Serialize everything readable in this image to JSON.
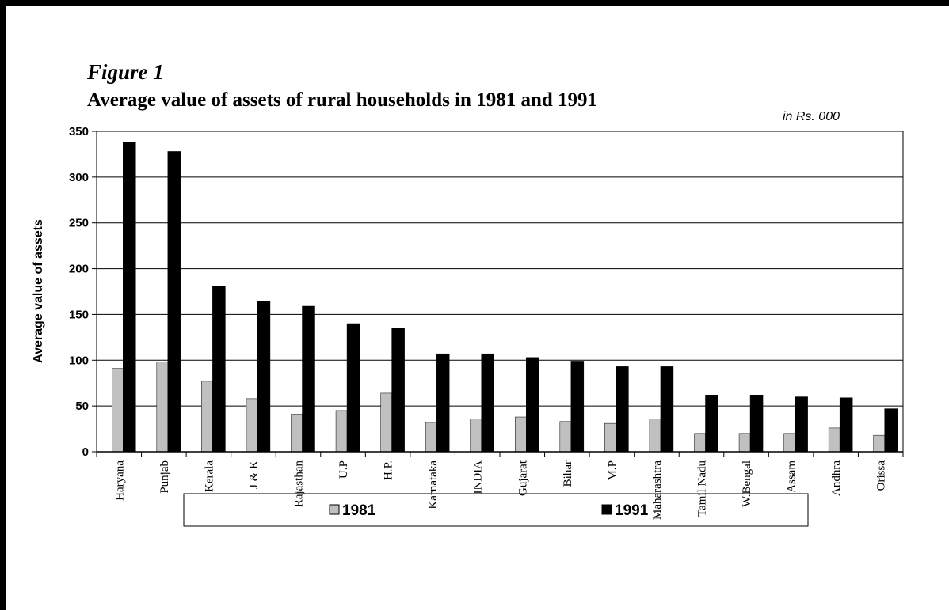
{
  "chart_data": {
    "type": "bar",
    "subtitle": "Figure 1",
    "title": "Average value of assets of rural households in 1981 and 1991",
    "unit_note": "in Rs. 000",
    "y_label": "Average value of assets",
    "categories": [
      "Haryana",
      "Punjab",
      "Kerala",
      "J & K",
      "Rajasthan",
      "U.P",
      "H.P.",
      "Karnataka",
      "INDIA",
      "Gujarat",
      "Bihar",
      "M.P",
      "Maharashtra",
      "Tamil Nadu",
      "W.Bengal",
      "Assam",
      "Andhra",
      "Orissa"
    ],
    "series": [
      {
        "name": "1981",
        "color": "#c0c0c0",
        "values": [
          91,
          98,
          77,
          58,
          41,
          45,
          64,
          32,
          36,
          38,
          33,
          31,
          36,
          20,
          20,
          20,
          26,
          18
        ]
      },
      {
        "name": "1991",
        "color": "#000000",
        "values": [
          338,
          328,
          181,
          164,
          159,
          140,
          135,
          107,
          107,
          103,
          99,
          93,
          93,
          62,
          62,
          60,
          59,
          47
        ]
      }
    ],
    "ylim": [
      0,
      350
    ],
    "yticks": [
      0,
      50,
      100,
      150,
      200,
      250,
      300,
      350
    ],
    "grid": true,
    "legend": "bottom"
  }
}
